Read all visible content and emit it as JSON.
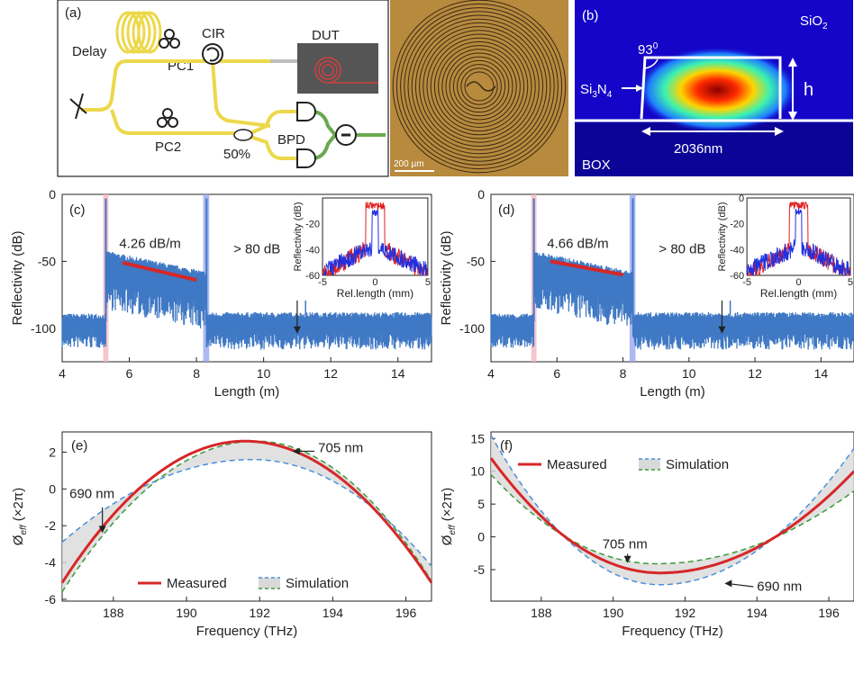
{
  "panel_a": {
    "label": "(a)",
    "delay": "Delay",
    "cir": "CIR",
    "dut": "DUT",
    "pc1": "PC1",
    "pc2": "PC2",
    "split": "50%",
    "bpd": "BPD",
    "scale_bar": "200 µm"
  },
  "panel_b": {
    "label": "(b)",
    "cladding": "SiO",
    "cladding_sub": "2",
    "angle": "93",
    "angle_sup": "0",
    "core": "Si",
    "core_sub1": "3",
    "core_mid": "N",
    "core_sub2": "4",
    "height": "h",
    "width": "2036nm",
    "box": "BOX"
  },
  "chart_data": [
    {
      "panel": "(c)",
      "type": "line",
      "xlabel": "Length (m)",
      "ylabel": "Reflectivity (dB)",
      "xlim": [
        4,
        15
      ],
      "ylim": [
        -125,
        0
      ],
      "xticks": [
        "4",
        "6",
        "8",
        "10",
        "12",
        "14"
      ],
      "yticks": [
        "0",
        "-50",
        "-100"
      ],
      "loss_label": "4.26 dB/m",
      "loss_fit": {
        "x": [
          5.8,
          8.0
        ],
        "y": [
          -51,
          -64
        ]
      },
      "range_label": "> 80 dB",
      "peaks_m": [
        5.3,
        8.3
      ],
      "inset": {
        "xlabel": "Rel.length (mm)",
        "ylabel": "Reflectivity (dB)",
        "xlim": [
          -5,
          5
        ],
        "ylim": [
          -60,
          0
        ],
        "xticks": [
          "-5",
          "0",
          "5"
        ],
        "yticks": [
          "-20",
          "-40",
          "-60"
        ]
      }
    },
    {
      "panel": "(d)",
      "type": "line",
      "xlabel": "Length (m)",
      "ylabel": "Reflectivity (dB)",
      "xlim": [
        4,
        15
      ],
      "ylim": [
        -125,
        0
      ],
      "xticks": [
        "4",
        "6",
        "8",
        "10",
        "12",
        "14"
      ],
      "yticks": [
        "0",
        "-50",
        "-100"
      ],
      "loss_label": "4.66 dB/m",
      "loss_fit": {
        "x": [
          5.8,
          8.0
        ],
        "y": [
          -50,
          -60
        ]
      },
      "range_label": "> 80 dB",
      "peaks_m": [
        5.3,
        8.3
      ],
      "inset": {
        "xlabel": "Rel.length (mm)",
        "ylabel": "Reflectivity (dB)",
        "xlim": [
          -5,
          5
        ],
        "ylim": [
          -60,
          0
        ],
        "xticks": [
          "-5",
          "0",
          "5"
        ],
        "yticks": [
          "0",
          "-20",
          "-40",
          "-60"
        ]
      }
    },
    {
      "panel": "(e)",
      "type": "line",
      "xlabel": "Frequency (THz)",
      "ylabel": "Ø",
      "ylabel_sub": "eff",
      "ylabel_unit": "(×2π)",
      "xlim": [
        186.6,
        196.7
      ],
      "ylim": [
        -6.1,
        3.1
      ],
      "xticks": [
        "188",
        "190",
        "192",
        "194",
        "196"
      ],
      "yticks": [
        "2",
        "0",
        "-2",
        "-4",
        "-6"
      ],
      "series": [
        {
          "name": "Measured",
          "color": "#d62728",
          "vertex": 191.6,
          "peak": 2.6,
          "left": -5.1,
          "right": -5.1
        },
        {
          "color": "#4a90d9",
          "vertex": 191.8,
          "peak": 1.6,
          "left": -2.9,
          "right": -4.2
        },
        {
          "name": "Simulation",
          "color": "#3a9a3a",
          "vertex": 191.9,
          "peak": 2.6,
          "left": -5.6,
          "right": -5.0
        }
      ],
      "annotations": [
        "690 nm",
        "705 nm"
      ],
      "legend": {
        "measured": "Measured",
        "simulation": "Simulation"
      }
    },
    {
      "panel": "(f)",
      "type": "line",
      "xlabel": "Frequency (THz)",
      "ylabel": "Ø",
      "ylabel_sub": "eff",
      "ylabel_unit": "(×2π)",
      "xlim": [
        186.6,
        196.7
      ],
      "ylim": [
        -9.8,
        16
      ],
      "xticks": [
        "188",
        "190",
        "192",
        "194",
        "196"
      ],
      "yticks": [
        "15",
        "10",
        "5",
        "0",
        "-5"
      ],
      "series": [
        {
          "name": "Measured",
          "color": "#d62728",
          "vertex": 191.3,
          "min": -5.5,
          "left": 12.0,
          "right": 10.0
        },
        {
          "color": "#4a90d9",
          "vertex": 191.3,
          "min": -7.3,
          "left": 15.5,
          "right": 13.5
        },
        {
          "name": "Simulation",
          "color": "#3a9a3a",
          "vertex": 191.2,
          "min": -4.1,
          "left": 9.5,
          "right": 7.0
        }
      ],
      "annotations": [
        "705 nm",
        "690 nm"
      ],
      "legend": {
        "measured": "Measured",
        "simulation": "Simulation"
      }
    }
  ]
}
